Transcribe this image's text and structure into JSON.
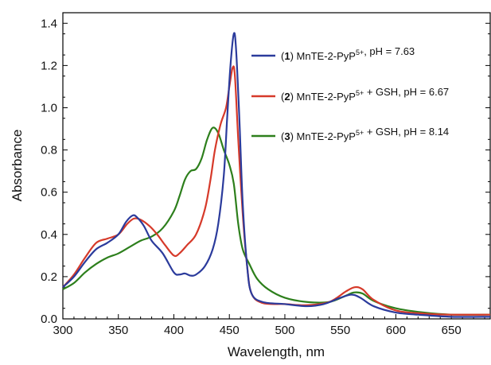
{
  "chart_data": {
    "type": "line",
    "xlabel": "Wavelength, nm",
    "ylabel": "Absorbance",
    "xlim": [
      300,
      685
    ],
    "ylim": [
      0.0,
      1.45
    ],
    "x_ticks": [
      "300",
      "350",
      "400",
      "450",
      "500",
      "550",
      "600",
      "650"
    ],
    "y_ticks": [
      "0.0",
      "0.2",
      "0.4",
      "0.6",
      "0.8",
      "1.0",
      "1.2",
      "1.4"
    ],
    "legend_position": "top-right",
    "grid": false,
    "series": [
      {
        "name": "(1) MnTE-2-PyP5+, pH = 7.63",
        "legend": {
          "num": "1",
          "text1": " MnTE-2-PyP",
          "sup": "5+",
          "text2": ", pH = 7.63"
        },
        "color": "#2b3b9c",
        "points": [
          [
            300,
            0.15
          ],
          [
            310,
            0.2
          ],
          [
            320,
            0.27
          ],
          [
            330,
            0.33
          ],
          [
            340,
            0.36
          ],
          [
            350,
            0.4
          ],
          [
            357,
            0.46
          ],
          [
            363,
            0.49
          ],
          [
            367,
            0.48
          ],
          [
            373,
            0.44
          ],
          [
            380,
            0.37
          ],
          [
            390,
            0.31
          ],
          [
            400,
            0.22
          ],
          [
            405,
            0.21
          ],
          [
            410,
            0.215
          ],
          [
            415,
            0.205
          ],
          [
            420,
            0.21
          ],
          [
            428,
            0.25
          ],
          [
            435,
            0.33
          ],
          [
            440,
            0.45
          ],
          [
            445,
            0.68
          ],
          [
            448,
            0.95
          ],
          [
            451,
            1.2
          ],
          [
            454,
            1.35
          ],
          [
            456,
            1.28
          ],
          [
            459,
            0.95
          ],
          [
            462,
            0.55
          ],
          [
            466,
            0.25
          ],
          [
            470,
            0.12
          ],
          [
            480,
            0.08
          ],
          [
            500,
            0.07
          ],
          [
            520,
            0.06
          ],
          [
            535,
            0.07
          ],
          [
            550,
            0.1
          ],
          [
            560,
            0.115
          ],
          [
            568,
            0.1
          ],
          [
            580,
            0.06
          ],
          [
            600,
            0.03
          ],
          [
            620,
            0.02
          ],
          [
            650,
            0.01
          ],
          [
            685,
            0.01
          ]
        ]
      },
      {
        "name": "(2) MnTE-2-PyP5+ + GSH, pH = 6.67",
        "legend": {
          "num": "2",
          "text1": " MnTE-2-PyP",
          "sup": "5+",
          "text2": " + GSH, pH = 6.67"
        },
        "color": "#d63a2a",
        "points": [
          [
            300,
            0.15
          ],
          [
            310,
            0.21
          ],
          [
            320,
            0.29
          ],
          [
            330,
            0.36
          ],
          [
            340,
            0.38
          ],
          [
            350,
            0.4
          ],
          [
            358,
            0.45
          ],
          [
            364,
            0.475
          ],
          [
            370,
            0.47
          ],
          [
            378,
            0.44
          ],
          [
            385,
            0.4
          ],
          [
            392,
            0.35
          ],
          [
            400,
            0.3
          ],
          [
            405,
            0.31
          ],
          [
            412,
            0.35
          ],
          [
            420,
            0.4
          ],
          [
            428,
            0.52
          ],
          [
            433,
            0.66
          ],
          [
            437,
            0.8
          ],
          [
            442,
            0.92
          ],
          [
            447,
            1.0
          ],
          [
            450,
            1.1
          ],
          [
            453,
            1.19
          ],
          [
            455,
            1.15
          ],
          [
            458,
            0.85
          ],
          [
            462,
            0.5
          ],
          [
            466,
            0.25
          ],
          [
            470,
            0.12
          ],
          [
            480,
            0.075
          ],
          [
            500,
            0.07
          ],
          [
            520,
            0.065
          ],
          [
            540,
            0.08
          ],
          [
            555,
            0.13
          ],
          [
            563,
            0.15
          ],
          [
            570,
            0.14
          ],
          [
            580,
            0.09
          ],
          [
            600,
            0.04
          ],
          [
            625,
            0.025
          ],
          [
            650,
            0.02
          ],
          [
            685,
            0.02
          ]
        ]
      },
      {
        "name": "(3) MnTE-2-PyP5+ + GSH, pH = 8.14",
        "legend": {
          "num": "3",
          "text1": " MnTE-2-PyP",
          "sup": "5+",
          "text2": " + GSH, pH = 8.14"
        },
        "color": "#2d7f1c",
        "points": [
          [
            300,
            0.14
          ],
          [
            310,
            0.17
          ],
          [
            320,
            0.22
          ],
          [
            330,
            0.26
          ],
          [
            340,
            0.29
          ],
          [
            350,
            0.31
          ],
          [
            360,
            0.34
          ],
          [
            370,
            0.37
          ],
          [
            380,
            0.39
          ],
          [
            390,
            0.43
          ],
          [
            400,
            0.51
          ],
          [
            405,
            0.58
          ],
          [
            410,
            0.66
          ],
          [
            415,
            0.7
          ],
          [
            420,
            0.71
          ],
          [
            425,
            0.76
          ],
          [
            430,
            0.85
          ],
          [
            435,
            0.905
          ],
          [
            440,
            0.88
          ],
          [
            445,
            0.8
          ],
          [
            450,
            0.73
          ],
          [
            454,
            0.64
          ],
          [
            458,
            0.45
          ],
          [
            462,
            0.33
          ],
          [
            468,
            0.26
          ],
          [
            475,
            0.19
          ],
          [
            485,
            0.14
          ],
          [
            500,
            0.1
          ],
          [
            520,
            0.08
          ],
          [
            540,
            0.08
          ],
          [
            555,
            0.11
          ],
          [
            562,
            0.125
          ],
          [
            570,
            0.12
          ],
          [
            580,
            0.085
          ],
          [
            600,
            0.05
          ],
          [
            625,
            0.03
          ],
          [
            650,
            0.02
          ],
          [
            685,
            0.02
          ]
        ]
      }
    ]
  }
}
